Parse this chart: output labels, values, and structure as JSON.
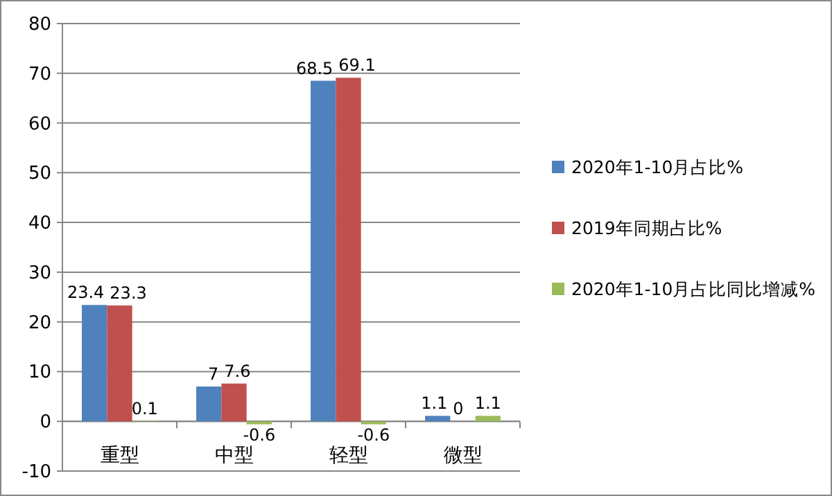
{
  "chart_data": {
    "type": "bar",
    "categories": [
      "重型",
      "中型",
      "轻型",
      "微型"
    ],
    "series": [
      {
        "name": "2020年1-10月占比%",
        "color": "#4f81bd",
        "values": [
          23.4,
          7,
          68.5,
          1.1
        ]
      },
      {
        "name": "2019年同期占比%",
        "color": "#c0504d",
        "values": [
          23.3,
          7.6,
          69.1,
          0
        ]
      },
      {
        "name": "2020年1-10月占比同比增减%",
        "color": "#9bbb59",
        "values": [
          0.1,
          -0.6,
          -0.6,
          1.1
        ]
      }
    ],
    "ylim": [
      -10,
      80
    ],
    "yticks": [
      -10,
      0,
      10,
      20,
      30,
      40,
      50,
      60,
      70,
      80
    ],
    "grid": "y",
    "legend": "right",
    "data_labels": true
  }
}
